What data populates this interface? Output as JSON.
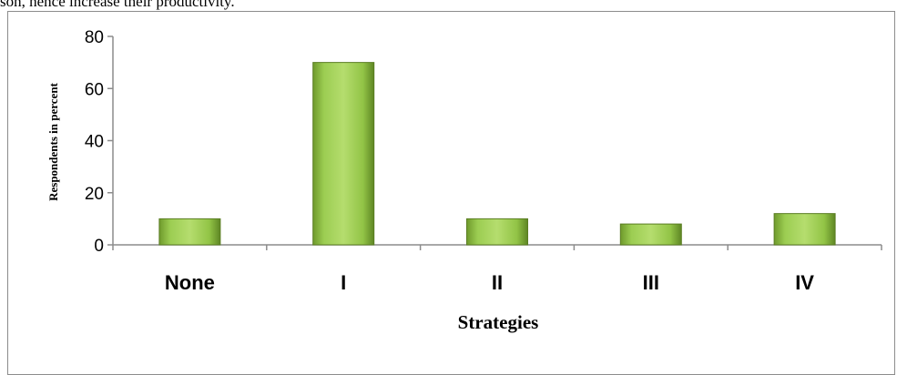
{
  "page": {
    "intro_text": "son, hence increase their productivity."
  },
  "chart_data": {
    "type": "bar",
    "categories": [
      "None",
      "I",
      "II",
      "III",
      "IV"
    ],
    "values": [
      10,
      70,
      10,
      8,
      12
    ],
    "title": "",
    "xlabel": "Strategies",
    "ylabel": "Respondents  in percent",
    "ylim": [
      0,
      80
    ],
    "yticks": [
      0,
      20,
      40,
      60,
      80
    ],
    "bar_color": "#8cc63f",
    "grid": false,
    "legend": "none"
  }
}
